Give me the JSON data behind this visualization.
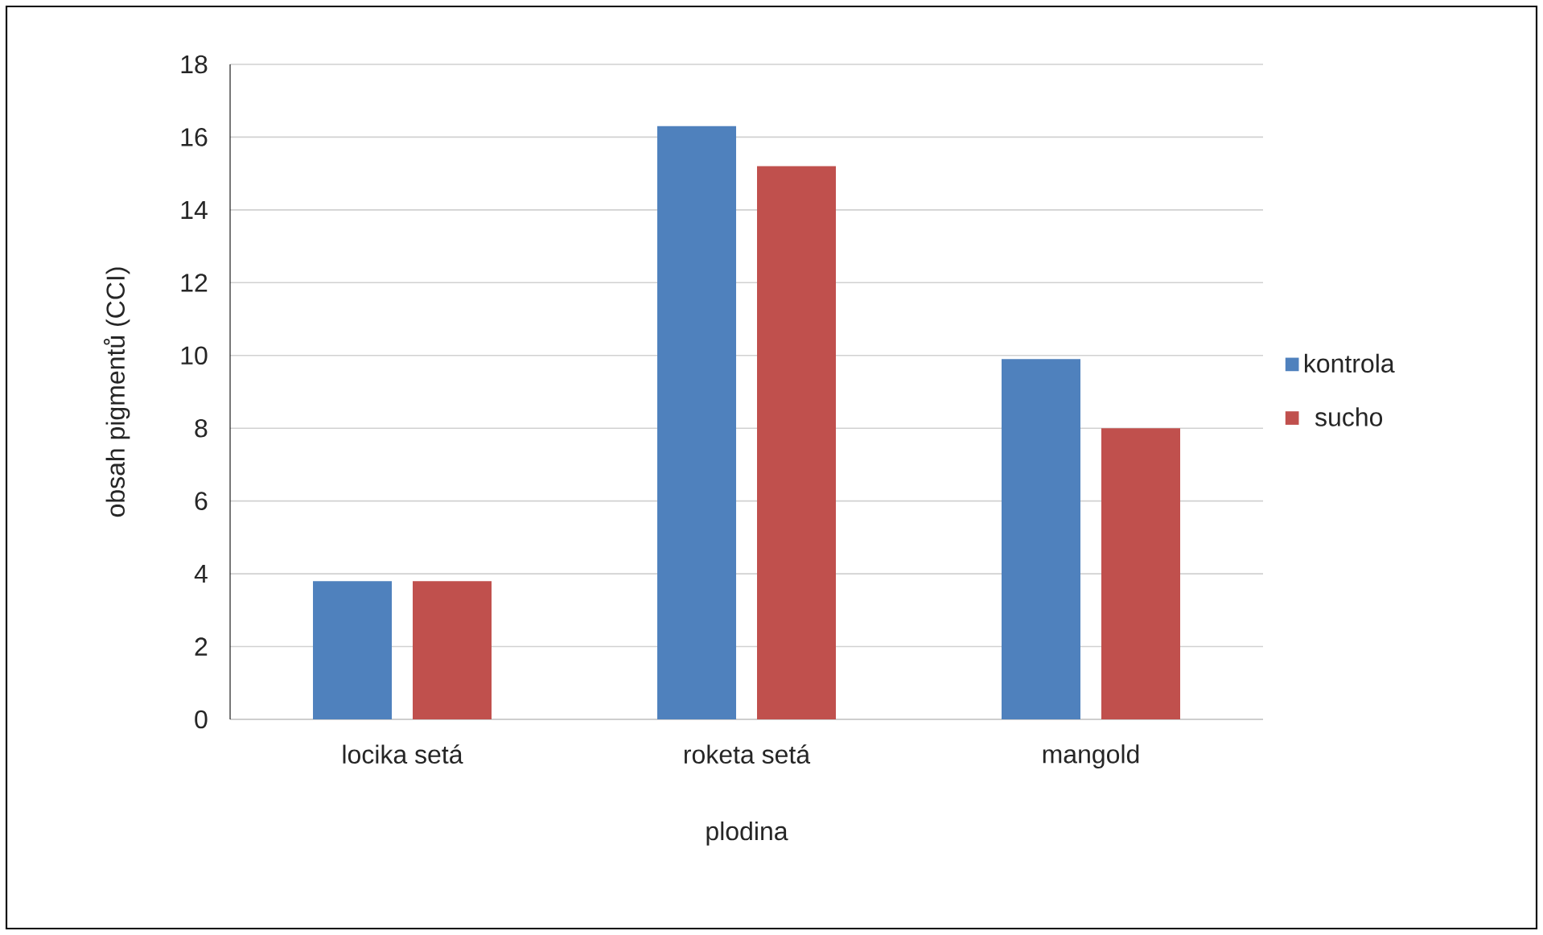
{
  "chart_data": {
    "type": "bar",
    "xlabel": "plodina",
    "ylabel": "obsah pigmentů (CCI)",
    "categories": [
      "locika setá",
      "roketa setá",
      "mangold"
    ],
    "series": [
      {
        "name": "kontrola",
        "color": "#4f81bd",
        "values": [
          3.8,
          16.3,
          9.9
        ]
      },
      {
        "name": "sucho",
        "color": "#c0504d",
        "values": [
          3.8,
          15.2,
          8.0
        ]
      }
    ],
    "ylim": [
      0,
      18
    ],
    "yticks": [
      0,
      2,
      4,
      6,
      8,
      10,
      12,
      14,
      16,
      18
    ],
    "grid": "y",
    "legend": "right"
  }
}
